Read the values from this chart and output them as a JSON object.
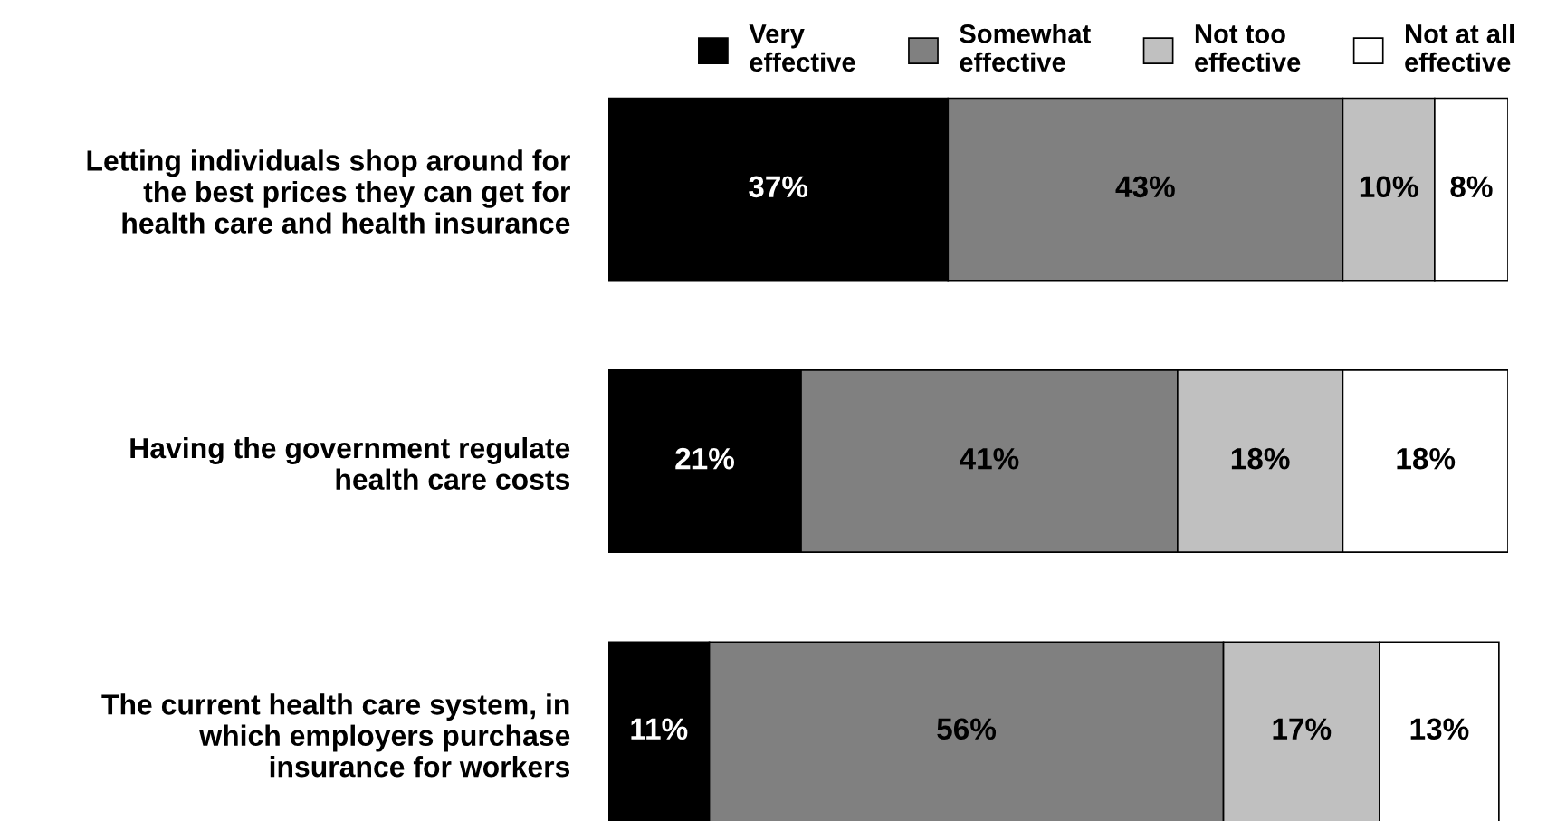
{
  "chart_data": {
    "type": "bar",
    "orientation": "horizontal",
    "stacked": true,
    "legend": "top right",
    "categories": [
      "Letting individuals shop around for\nthe best prices they can get for\nhealth care and health insurance",
      "Having the government regulate\nhealth care costs",
      "The current health care system, in\nwhich employers purchase\ninsurance for workers"
    ],
    "series": [
      {
        "name": "Very\neffective",
        "color": "#000000",
        "values": [
          37,
          21,
          11
        ],
        "value_labels": [
          "37%",
          "21%",
          "11%"
        ]
      },
      {
        "name": "Somewhat\neffective",
        "color": "#808080",
        "values": [
          43,
          41,
          56
        ],
        "value_labels": [
          "43%",
          "41%",
          "56%"
        ]
      },
      {
        "name": "Not too\neffective",
        "color": "#c0c0c0",
        "values": [
          10,
          18,
          17
        ],
        "value_labels": [
          "10%",
          "18%",
          "17%"
        ]
      },
      {
        "name": "Not at all\neffective",
        "color": "#ffffff",
        "values": [
          8,
          18,
          13
        ],
        "value_labels": [
          "8%",
          "18%",
          "13%"
        ]
      }
    ]
  }
}
